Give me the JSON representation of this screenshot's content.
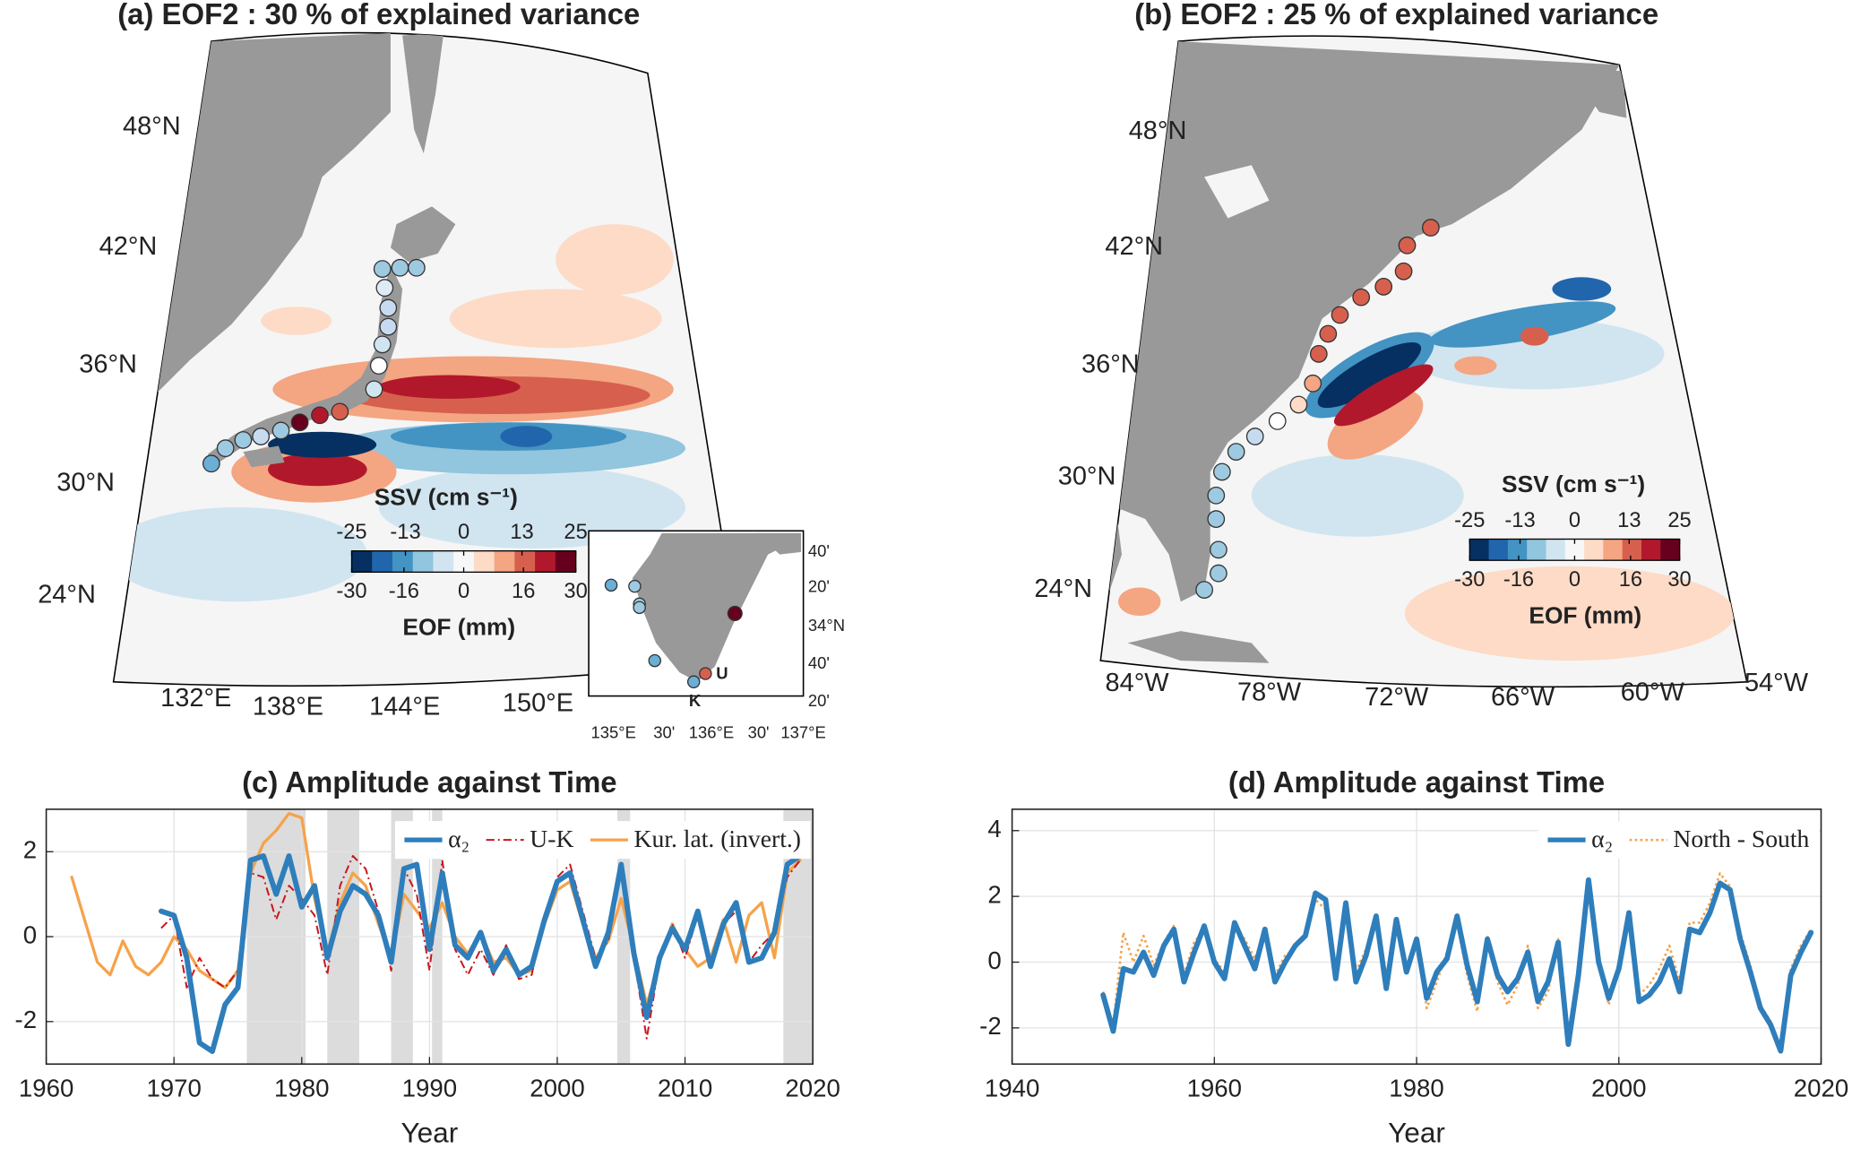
{
  "chart_data": [
    {
      "type": "map",
      "title": "(a) EOF2 : 30 % of explained variance",
      "lat_labels": [
        "48°N",
        "42°N",
        "36°N",
        "30°N",
        "24°N"
      ],
      "lon_labels": [
        "132°E",
        "138°E",
        "144°E",
        "150°E"
      ],
      "colorbar": {
        "label_top": "SSV (cm s⁻¹)",
        "label_bottom": "EOF (mm)",
        "colors": [
          "#053061",
          "#2166ac",
          "#4393c3",
          "#92c5de",
          "#d1e5f0",
          "#f7f7f7",
          "#fddbc7",
          "#f4a582",
          "#d6604d",
          "#b2182b",
          "#67001f"
        ],
        "top_lim": [
          -25,
          25
        ],
        "top_ticks": [
          -25,
          -13,
          0,
          13,
          25
        ],
        "bottom_lim": [
          -30,
          30
        ],
        "bottom_ticks": [
          -30,
          -16,
          0,
          16,
          30
        ]
      },
      "inset": {
        "lat_labels": [
          "40'",
          "20'",
          "34°N",
          "40'",
          "20'"
        ],
        "lon_labels": [
          "135°E",
          "30'",
          "136°E",
          "30'",
          "137°E"
        ],
        "station_labels": [
          "U",
          "K"
        ]
      }
    },
    {
      "type": "map",
      "title": "(b) EOF2 : 25 % of explained variance",
      "lat_labels": [
        "48°N",
        "42°N",
        "36°N",
        "30°N",
        "24°N"
      ],
      "lon_labels": [
        "84°W",
        "78°W",
        "72°W",
        "66°W",
        "60°W",
        "54°W"
      ],
      "colorbar": {
        "label_top": "SSV (cm s⁻¹)",
        "label_bottom": "EOF (mm)",
        "colors": [
          "#053061",
          "#2166ac",
          "#4393c3",
          "#92c5de",
          "#d1e5f0",
          "#f7f7f7",
          "#fddbc7",
          "#f4a582",
          "#d6604d",
          "#b2182b",
          "#67001f"
        ],
        "top_lim": [
          -25,
          25
        ],
        "top_ticks": [
          -25,
          -13,
          0,
          13,
          25
        ],
        "bottom_lim": [
          -30,
          30
        ],
        "bottom_ticks": [
          -30,
          -16,
          0,
          16,
          30
        ]
      }
    },
    {
      "type": "line",
      "title": "(c) Amplitude against Time",
      "xlabel": "Year",
      "xlim": [
        1960,
        2020
      ],
      "ylim": [
        -3,
        3
      ],
      "xticks": [
        1960,
        1970,
        1980,
        1990,
        2000,
        2010,
        2020
      ],
      "yticks": [
        -2,
        0,
        2
      ],
      "grid": true,
      "legend": "northeast",
      "shaded_periods": [
        [
          1975.7,
          1980.3
        ],
        [
          1982,
          1984.5
        ],
        [
          1987,
          1988.7
        ],
        [
          1990.2,
          1991
        ],
        [
          2004.7,
          2005.7
        ],
        [
          2017.7,
          2020
        ]
      ],
      "series": [
        {
          "name": "α₂",
          "color": "#2e7ebc",
          "style": "solid",
          "linewidth": 4.5,
          "x": [
            1969,
            1970,
            1971,
            1972,
            1973,
            1974,
            1975,
            1976,
            1977,
            1978,
            1979,
            1980,
            1981,
            1982,
            1983,
            1984,
            1985,
            1986,
            1987,
            1988,
            1989,
            1990,
            1991,
            1992,
            1993,
            1994,
            1995,
            1996,
            1997,
            1998,
            1999,
            2000,
            2001,
            2002,
            2003,
            2004,
            2005,
            2006,
            2007,
            2008,
            2009,
            2010,
            2011,
            2012,
            2013,
            2014,
            2015,
            2016,
            2017,
            2018,
            2019
          ],
          "values": [
            0.6,
            0.5,
            -0.5,
            -2.5,
            -2.7,
            -1.6,
            -1.2,
            1.8,
            1.9,
            1.0,
            1.9,
            0.7,
            1.2,
            -0.5,
            0.6,
            1.2,
            1.0,
            0.5,
            -0.6,
            1.6,
            1.7,
            -0.3,
            1.5,
            -0.2,
            -0.5,
            0.1,
            -0.8,
            -0.3,
            -0.9,
            -0.7,
            0.4,
            1.3,
            1.5,
            0.4,
            -0.7,
            0.1,
            1.7,
            -0.4,
            -1.9,
            -0.5,
            0.2,
            -0.3,
            0.6,
            -0.7,
            0.3,
            0.8,
            -0.6,
            -0.5,
            0.1,
            1.7,
            1.9
          ]
        },
        {
          "name": "U-K",
          "color": "#c8141c",
          "style": "dashdot",
          "linewidth": 1.5,
          "x": [
            1969,
            1970,
            1971,
            1972,
            1973,
            1974,
            1975,
            1976,
            1977,
            1978,
            1979,
            1980,
            1981,
            1982,
            1983,
            1984,
            1985,
            1986,
            1987,
            1988,
            1989,
            1990,
            1991,
            1992,
            1993,
            1994,
            1995,
            1996,
            1997,
            1998,
            1999,
            2000,
            2001,
            2002,
            2003,
            2004,
            2005,
            2006,
            2007,
            2008,
            2009,
            2010,
            2011,
            2012,
            2013,
            2014,
            2015,
            2016,
            2017,
            2018,
            2019
          ],
          "values": [
            0.2,
            0.5,
            -1.2,
            -0.5,
            -1.0,
            -1.2,
            -0.8,
            1.5,
            1.4,
            0.4,
            1.2,
            0.9,
            0.5,
            -0.9,
            1.2,
            1.9,
            1.6,
            0.6,
            -0.8,
            1.6,
            1.0,
            -0.8,
            1.8,
            -0.3,
            -0.9,
            -0.3,
            -0.9,
            -0.2,
            -1.0,
            -0.9,
            0.5,
            1.4,
            1.7,
            0.6,
            -0.5,
            -0.1,
            1.5,
            -0.5,
            -2.4,
            -0.6,
            0.3,
            -0.5,
            0.5,
            -0.6,
            0.3,
            0.6,
            -0.6,
            -0.2,
            0.1,
            1.4,
            1.8
          ]
        },
        {
          "name": "Kur. lat. (invert.)",
          "color": "#f5a34a",
          "style": "solid",
          "linewidth": 2.5,
          "x": [
            1962,
            1963,
            1964,
            1965,
            1966,
            1967,
            1968,
            1969,
            1970,
            1971,
            1972,
            1973,
            1974,
            1975,
            1976,
            1977,
            1978,
            1979,
            1980,
            1981,
            1982,
            1983,
            1984,
            1985,
            1986,
            1987,
            1988,
            1989,
            1990,
            1991,
            1992,
            1993,
            1994,
            1995,
            1996,
            1997,
            1998,
            1999,
            2000,
            2001,
            2002,
            2003,
            2004,
            2005,
            2006,
            2007,
            2008,
            2009,
            2010,
            2011,
            2012,
            2013,
            2014,
            2015,
            2016,
            2017,
            2018,
            2019
          ],
          "values": [
            1.4,
            0.4,
            -0.6,
            -0.9,
            -0.1,
            -0.7,
            -0.9,
            -0.6,
            0.0,
            -0.3,
            -0.8,
            -1.0,
            -1.2,
            -0.8,
            1.5,
            2.2,
            2.5,
            2.9,
            2.8,
            0.9,
            -0.4,
            0.8,
            1.5,
            1.2,
            0.3,
            -0.5,
            1.0,
            0.6,
            0.2,
            0.8,
            0.0,
            -0.4,
            0.1,
            -0.6,
            -0.5,
            -0.9,
            -0.8,
            0.3,
            1.1,
            1.3,
            0.3,
            -0.5,
            -0.1,
            0.9,
            -0.3,
            -1.6,
            -0.6,
            0.3,
            -0.3,
            -0.7,
            -0.5,
            0.4,
            -0.6,
            0.5,
            0.8,
            -0.5,
            1.5,
            1.8
          ]
        }
      ]
    },
    {
      "type": "line",
      "title": "(d) Amplitude against Time",
      "xlabel": "Year",
      "xlim": [
        1940,
        2020
      ],
      "ylim": [
        -3.1,
        4.65
      ],
      "xticks": [
        1940,
        1960,
        1980,
        2000,
        2020
      ],
      "yticks": [
        -2,
        0,
        2,
        4
      ],
      "grid": true,
      "legend": "northeast",
      "series": [
        {
          "name": "α₂",
          "color": "#2e7ebc",
          "style": "solid",
          "linewidth": 4.5,
          "x": [
            1949,
            1950,
            1951,
            1952,
            1953,
            1954,
            1955,
            1956,
            1957,
            1958,
            1959,
            1960,
            1961,
            1962,
            1963,
            1964,
            1965,
            1966,
            1967,
            1968,
            1969,
            1970,
            1971,
            1972,
            1973,
            1974,
            1975,
            1976,
            1977,
            1978,
            1979,
            1980,
            1981,
            1982,
            1983,
            1984,
            1985,
            1986,
            1987,
            1988,
            1989,
            1990,
            1991,
            1992,
            1993,
            1994,
            1995,
            1996,
            1997,
            1998,
            1999,
            2000,
            2001,
            2002,
            2003,
            2004,
            2005,
            2006,
            2007,
            2008,
            2009,
            2010,
            2011,
            2012,
            2013,
            2014,
            2015,
            2016,
            2017,
            2018,
            2019
          ],
          "values": [
            -1.0,
            -2.1,
            -0.2,
            -0.3,
            0.3,
            -0.4,
            0.5,
            1.0,
            -0.6,
            0.3,
            1.1,
            0.0,
            -0.5,
            1.2,
            0.5,
            -0.2,
            1.0,
            -0.6,
            0.0,
            0.5,
            0.8,
            2.1,
            1.9,
            -0.5,
            1.8,
            -0.6,
            0.2,
            1.4,
            -0.8,
            1.3,
            -0.3,
            0.7,
            -1.1,
            -0.3,
            0.1,
            1.4,
            -0.1,
            -1.2,
            0.7,
            -0.4,
            -0.9,
            -0.5,
            0.3,
            -1.2,
            -0.6,
            0.6,
            -2.5,
            -0.4,
            2.5,
            0.0,
            -1.1,
            -0.2,
            1.5,
            -1.2,
            -1.0,
            -0.6,
            0.1,
            -0.9,
            1.0,
            0.9,
            1.5,
            2.4,
            2.2,
            0.7,
            -0.3,
            -1.4,
            -1.9,
            -2.7,
            -0.4,
            0.3,
            0.9
          ]
        },
        {
          "name": "North - South",
          "color": "#f5a34a",
          "style": "dotted",
          "linewidth": 2,
          "x": [
            1949,
            1950,
            1951,
            1952,
            1953,
            1954,
            1955,
            1956,
            1957,
            1958,
            1959,
            1960,
            1961,
            1962,
            1963,
            1964,
            1965,
            1966,
            1967,
            1968,
            1969,
            1970,
            1971,
            1972,
            1973,
            1974,
            1975,
            1976,
            1977,
            1978,
            1979,
            1980,
            1981,
            1982,
            1983,
            1984,
            1985,
            1986,
            1987,
            1988,
            1989,
            1990,
            1991,
            1992,
            1993,
            1994,
            1995,
            1996,
            1997,
            1998,
            1999,
            2000,
            2001,
            2002,
            2003,
            2004,
            2005,
            2006,
            2007,
            2008,
            2009,
            2010,
            2011,
            2012,
            2013,
            2014,
            2015,
            2016,
            2017,
            2018,
            2019
          ],
          "values": [
            -0.9,
            -1.9,
            0.9,
            0.0,
            0.8,
            -0.1,
            0.6,
            1.1,
            -0.4,
            0.6,
            1.0,
            0.1,
            -0.3,
            1.0,
            0.7,
            0.1,
            0.9,
            -0.4,
            0.2,
            0.4,
            0.9,
            1.9,
            1.6,
            -0.2,
            1.6,
            -0.3,
            0.4,
            1.1,
            -0.6,
            1.1,
            -0.2,
            0.8,
            -1.4,
            -0.6,
            0.3,
            1.2,
            -0.4,
            -1.5,
            0.8,
            -0.6,
            -1.3,
            -0.7,
            0.5,
            -1.4,
            -0.9,
            0.7,
            -2.2,
            -0.1,
            2.3,
            0.2,
            -1.3,
            -0.1,
            1.4,
            -1.0,
            -0.7,
            -0.2,
            0.5,
            -0.6,
            1.2,
            1.2,
            1.8,
            2.7,
            2.3,
            0.9,
            -0.1,
            -1.3,
            -1.8,
            -2.6,
            -0.2,
            0.5,
            1.0
          ]
        }
      ]
    }
  ]
}
